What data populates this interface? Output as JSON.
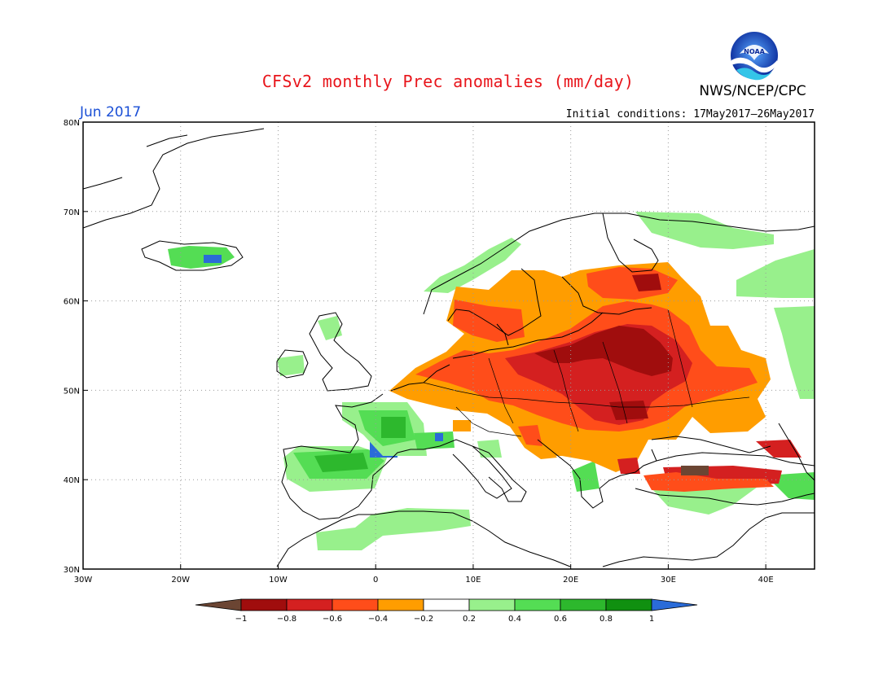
{
  "header": {
    "title": "CFSv2 monthly Prec anomalies (mm/day)",
    "agency": "NWS/NCEP/CPC",
    "logo_text": "NOAA",
    "month": "Jun 2017",
    "initial_conditions": "Initial conditions: 17May2017–26May2017"
  },
  "map": {
    "lat_range": [
      30,
      80
    ],
    "lon_range": [
      -30,
      45
    ],
    "lat_labels": [
      "80N",
      "70N",
      "60N",
      "50N",
      "40N",
      "30N"
    ],
    "lon_labels": [
      "30W",
      "20W",
      "10W",
      "0",
      "10E",
      "20E",
      "30E",
      "40E"
    ]
  },
  "colorbar": {
    "levels": [
      "-1",
      "-0.8",
      "-0.6",
      "-0.4",
      "-0.2",
      "0.2",
      "0.4",
      "0.6",
      "0.8",
      "1"
    ],
    "colors": [
      "#6b4533",
      "#a00d0d",
      "#d42020",
      "#ff4d1a",
      "#ff9d00",
      "#ffffff",
      "#98f08c",
      "#54dd54",
      "#2db82d",
      "#109010",
      "#2a6bd8"
    ]
  },
  "colors": {
    "title": "#e8151b",
    "month": "#1a4fd6",
    "coast": "#000000",
    "grid": "#9a9a9a"
  },
  "anomaly_regions": [
    {
      "category": "-0.8",
      "lon": [
        20,
        32
      ],
      "lat": [
        51,
        58
      ]
    },
    {
      "category": "-0.6",
      "lon": [
        12,
        30
      ],
      "lat": [
        46,
        54
      ]
    },
    {
      "category": "-0.4",
      "lon": [
        -3,
        40
      ],
      "lat": [
        45,
        62
      ]
    },
    {
      "category": "0.4",
      "lon": [
        -9,
        -1
      ],
      "lat": [
        39,
        44
      ]
    },
    {
      "category": "0.2",
      "lon": [
        -2,
        5
      ],
      "lat": [
        41,
        48
      ]
    },
    {
      "category": "0.2",
      "lon": [
        38,
        45
      ],
      "lat": [
        55,
        62
      ]
    }
  ]
}
